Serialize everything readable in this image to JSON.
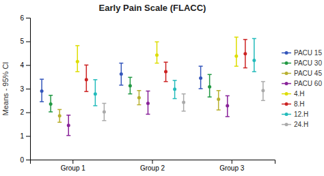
{
  "chart_data": {
    "type": "errorbar",
    "title": "Early Pain Scale (FLACC)",
    "ylabel": "Means - 95% CI",
    "categories": [
      "Group 1",
      "Group 2",
      "Group 3"
    ],
    "ylim": [
      0,
      6
    ],
    "yticks": [
      0,
      1,
      2,
      3,
      4,
      5,
      6
    ],
    "grid": false,
    "legend": "right",
    "marker": "circle",
    "series": [
      {
        "name": "PACU 15",
        "color": "#3355bb",
        "values": [
          2.9,
          3.62,
          3.45
        ],
        "lows": [
          2.45,
          3.15,
          3.0
        ],
        "highs": [
          3.4,
          4.08,
          3.95
        ]
      },
      {
        "name": "PACU 30",
        "color": "#229944",
        "values": [
          2.35,
          3.12,
          3.08
        ],
        "lows": [
          2.02,
          2.78,
          2.65
        ],
        "highs": [
          2.72,
          3.48,
          3.6
        ]
      },
      {
        "name": "PACU 45",
        "color": "#b8b030",
        "values": [
          1.85,
          2.62,
          2.55
        ],
        "lows": [
          1.58,
          2.32,
          2.1
        ],
        "highs": [
          2.12,
          2.92,
          2.92
        ]
      },
      {
        "name": "PACU 60",
        "color": "#882299",
        "values": [
          1.45,
          2.38,
          2.28
        ],
        "lows": [
          1.02,
          1.92,
          1.82
        ],
        "highs": [
          1.88,
          2.9,
          2.7
        ]
      },
      {
        "name": "4.H",
        "color": "#dddd00",
        "values": [
          4.15,
          4.42,
          4.38
        ],
        "lows": [
          3.72,
          4.08,
          3.95
        ],
        "highs": [
          4.82,
          4.98,
          5.18
        ]
      },
      {
        "name": "8.H",
        "color": "#cc2222",
        "values": [
          3.38,
          3.72,
          4.48
        ],
        "lows": [
          2.88,
          3.3,
          3.88
        ],
        "highs": [
          4.0,
          4.12,
          5.08
        ]
      },
      {
        "name": "12.H",
        "color": "#22bbbb",
        "values": [
          2.78,
          2.98,
          4.2
        ],
        "lows": [
          2.28,
          2.58,
          3.72
        ],
        "highs": [
          3.38,
          3.35,
          5.12
        ]
      },
      {
        "name": "24.H",
        "color": "#aaaaaa",
        "values": [
          2.02,
          2.42,
          2.92
        ],
        "lows": [
          1.65,
          2.05,
          2.5
        ],
        "highs": [
          2.38,
          2.78,
          3.3
        ]
      }
    ]
  }
}
